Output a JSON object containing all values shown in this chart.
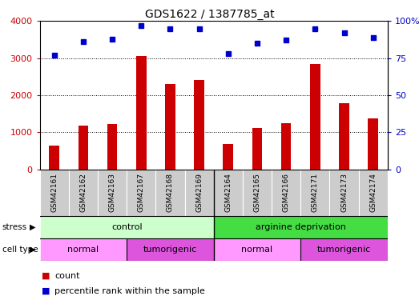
{
  "title": "GDS1622 / 1387785_at",
  "samples": [
    "GSM42161",
    "GSM42162",
    "GSM42163",
    "GSM42167",
    "GSM42168",
    "GSM42169",
    "GSM42164",
    "GSM42165",
    "GSM42166",
    "GSM42171",
    "GSM42173",
    "GSM42174"
  ],
  "counts": [
    650,
    1180,
    1230,
    3060,
    2300,
    2420,
    680,
    1120,
    1250,
    2850,
    1780,
    1380
  ],
  "percentile_ranks": [
    77,
    86,
    88,
    97,
    95,
    95,
    78,
    85,
    87,
    95,
    92,
    89
  ],
  "ylim_left": [
    0,
    4000
  ],
  "ylim_right": [
    0,
    100
  ],
  "yticks_left": [
    0,
    1000,
    2000,
    3000,
    4000
  ],
  "yticks_right": [
    0,
    25,
    50,
    75,
    100
  ],
  "ytick_right_labels": [
    "0",
    "25",
    "50",
    "75",
    "100%"
  ],
  "bar_color": "#cc0000",
  "dot_color": "#0000cc",
  "stress_groups": [
    {
      "label": "control",
      "start": 0,
      "end": 6,
      "color": "#ccffcc"
    },
    {
      "label": "arginine deprivation",
      "start": 6,
      "end": 12,
      "color": "#44dd44"
    }
  ],
  "cell_type_groups": [
    {
      "label": "normal",
      "start": 0,
      "end": 3,
      "color": "#ff99ff"
    },
    {
      "label": "tumorigenic",
      "start": 3,
      "end": 6,
      "color": "#dd55dd"
    },
    {
      "label": "normal",
      "start": 6,
      "end": 9,
      "color": "#ff99ff"
    },
    {
      "label": "tumorigenic",
      "start": 9,
      "end": 12,
      "color": "#dd55dd"
    }
  ],
  "sample_bg_color": "#cccccc",
  "separator_color": "#888888"
}
